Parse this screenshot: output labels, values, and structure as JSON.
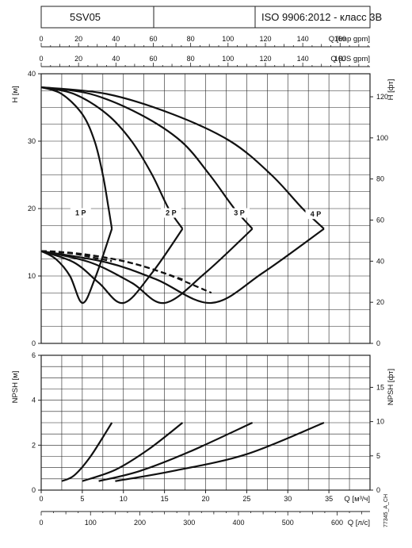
{
  "header": {
    "model": "5SV05",
    "standard": "ISO 9906:2012 - класс 3B"
  },
  "side_code": "77345_A_CH",
  "colors": {
    "grid": "#222222",
    "curve": "#111111",
    "background": "#ffffff"
  },
  "chart_data": [
    {
      "type": "line",
      "panel": "head",
      "xlabel": "Q [м³/ч]",
      "ylabel": "H [м]",
      "ylabel_right": "H [фт]",
      "xlim": [
        0,
        40
      ],
      "ylim": [
        0,
        40
      ],
      "ylim_right": [
        0,
        131.2
      ],
      "x_ticks": [
        0,
        5,
        10,
        15,
        20,
        25,
        30,
        35
      ],
      "y_ticks": [
        0,
        10,
        20,
        30,
        40
      ],
      "y_ticks_right": [
        0,
        20,
        40,
        60,
        80,
        100,
        120
      ],
      "top_axes": [
        {
          "label": "Q [Imp gpm]",
          "max": 176,
          "ticks": [
            0,
            20,
            40,
            60,
            80,
            100,
            120,
            140,
            160
          ]
        },
        {
          "label": "Q [US gpm]",
          "max": 176,
          "ticks": [
            0,
            20,
            40,
            60,
            80,
            100,
            120,
            140,
            160
          ]
        }
      ],
      "grid": true,
      "series": [
        {
          "name": "1 P",
          "style": "solid",
          "x": [
            0,
            2.5,
            5,
            6.5,
            7.5,
            8.2,
            8.6
          ],
          "y": [
            38,
            37,
            34,
            30,
            25,
            20,
            17
          ]
        },
        {
          "name": "2 P",
          "style": "solid",
          "x": [
            0,
            4,
            8,
            11,
            13.5,
            15.5,
            17.2
          ],
          "y": [
            38,
            37,
            34,
            30,
            25,
            20,
            17
          ]
        },
        {
          "name": "3 P",
          "style": "solid",
          "x": [
            0,
            6,
            12,
            17,
            20.5,
            23.5,
            25.7
          ],
          "y": [
            38,
            37,
            34,
            30,
            25,
            20,
            17
          ]
        },
        {
          "name": "4 P",
          "style": "solid",
          "x": [
            0,
            8,
            16,
            23,
            28,
            31.8,
            34.4
          ],
          "y": [
            38,
            37,
            34,
            30,
            25,
            20,
            17
          ]
        },
        {
          "name": "",
          "style": "solid",
          "x": [
            0,
            1.8,
            3.5,
            5,
            6.5,
            8.6
          ],
          "y": [
            13.7,
            12.5,
            10,
            6,
            9.5,
            17
          ]
        },
        {
          "name": "",
          "style": "solid",
          "x": [
            0,
            4,
            7,
            10,
            13.5,
            17.2
          ],
          "y": [
            13.7,
            12,
            9,
            6,
            10.5,
            17
          ]
        },
        {
          "name": "",
          "style": "solid",
          "x": [
            0,
            6,
            11,
            15,
            20,
            25.7
          ],
          "y": [
            13.7,
            12,
            9,
            6,
            10.5,
            17
          ]
        },
        {
          "name": "",
          "style": "solid",
          "x": [
            0,
            8,
            14,
            20.7,
            27,
            34.4
          ],
          "y": [
            13.7,
            12,
            9.5,
            6,
            10.5,
            17
          ]
        },
        {
          "name": "",
          "style": "dashed",
          "x": [
            0,
            2,
            4,
            6,
            8.6
          ],
          "y": [
            13.7,
            13.6,
            13.3,
            12.8,
            12.2
          ]
        },
        {
          "name": "",
          "style": "dashed",
          "x": [
            0,
            4,
            8,
            12,
            17.2
          ],
          "y": [
            13.7,
            13.4,
            12.7,
            11.6,
            9.5
          ]
        },
        {
          "name": "",
          "style": "dashed",
          "x": [
            0,
            5,
            10,
            15,
            20.7
          ],
          "y": [
            13.7,
            13.2,
            12.2,
            10.4,
            7.5
          ]
        }
      ],
      "labels": [
        {
          "text": "1 P",
          "x": 4.8,
          "y": 19
        },
        {
          "text": "2 P",
          "x": 15.8,
          "y": 19
        },
        {
          "text": "3 P",
          "x": 24.1,
          "y": 19
        },
        {
          "text": "4 P",
          "x": 33.4,
          "y": 18.8
        }
      ]
    },
    {
      "type": "line",
      "panel": "npsh",
      "xlabel": "Q [м³/ч]",
      "xlabel2": "Q [л/с]",
      "ylabel": "NPSH [м]",
      "ylabel_right": "NPSH [фт]",
      "xlim": [
        0,
        40
      ],
      "ylim": [
        0,
        6
      ],
      "ylim_right": [
        0,
        19.68
      ],
      "x_ticks": [
        0,
        5,
        10,
        15,
        20,
        25,
        30,
        35
      ],
      "x2_max": 666.7,
      "x2_ticks": [
        0,
        100,
        200,
        300,
        400,
        500,
        600
      ],
      "y_ticks": [
        0,
        2,
        4,
        6
      ],
      "y_ticks_right": [
        0,
        5,
        10,
        15
      ],
      "grid": true,
      "series": [
        {
          "name": "",
          "x": [
            2.5,
            4,
            6,
            8.6
          ],
          "y": [
            0.4,
            0.65,
            1.5,
            3.0
          ]
        },
        {
          "name": "",
          "x": [
            5,
            9,
            13,
            17.2
          ],
          "y": [
            0.4,
            0.9,
            1.8,
            3.0
          ]
        },
        {
          "name": "",
          "x": [
            7,
            12,
            18,
            25.7
          ],
          "y": [
            0.4,
            0.85,
            1.7,
            3.0
          ]
        },
        {
          "name": "",
          "x": [
            9,
            16,
            25,
            34.4
          ],
          "y": [
            0.4,
            0.85,
            1.6,
            3.0
          ]
        }
      ]
    }
  ]
}
